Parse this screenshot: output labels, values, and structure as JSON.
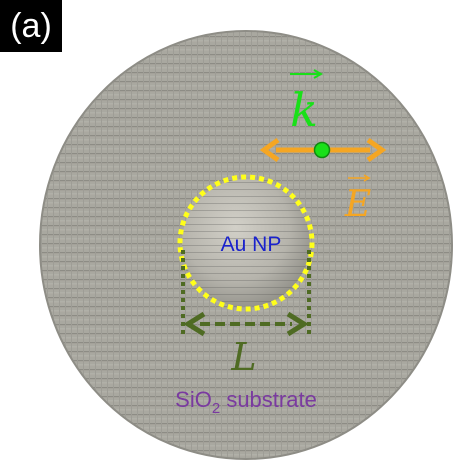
{
  "panel_label": "(a)",
  "wave_vector_symbol": "k",
  "field_symbol": "E",
  "nanoparticle_label": "Au NP",
  "length_symbol": "L",
  "substrate_label": {
    "prefix": "SiO",
    "subscript": "2",
    "suffix": " substrate"
  },
  "colors": {
    "substrate": "#a8a8a0",
    "nanoparticle": "#b4b2aa",
    "outline_dotted": "#ffff1a",
    "wave_vector": "#19e019",
    "field_arrow": "#f5a623",
    "dimension": "#4f6b23",
    "nanoparticle_text": "#1a22cc",
    "substrate_text": "#7a3aa0"
  }
}
